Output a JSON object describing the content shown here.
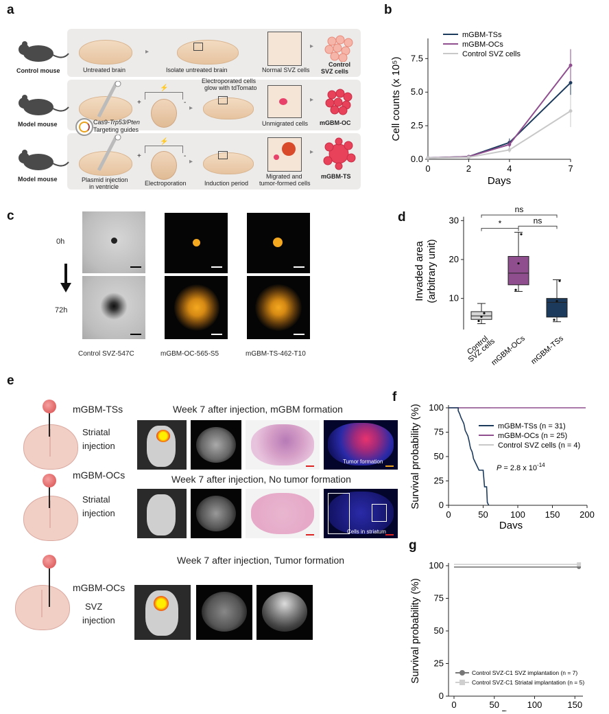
{
  "panels": {
    "a": "a",
    "b": "b",
    "c": "c",
    "d": "d",
    "e": "e",
    "f": "f",
    "g": "g"
  },
  "a": {
    "rows": [
      {
        "mouse": "Control mouse",
        "steps": [
          "Untreated brain",
          "Isolate untreated brain",
          "Normal SVZ cells"
        ],
        "result_line1": "Control",
        "result_line2": "SVZ cells"
      },
      {
        "mouse": "Model mouse",
        "steps": [
          "",
          "",
          "Unmigrated cells"
        ],
        "result_line1": "mGBM-OC",
        "result_line2": ""
      },
      {
        "mouse": "Model mouse",
        "steps": [
          "Plasmid injection",
          "Electroporation",
          "Induction period"
        ],
        "result_line1": "mGBM-TS",
        "result_line2": ""
      }
    ],
    "note_electroporated_1": "Electroporated cells",
    "note_electroporated_2": "glow with tdTomato",
    "guides_1_prefix": "Cas9-",
    "guides_1_italic": "Trp53/Pten",
    "guides_2": "Targeting guides",
    "plasmid_line2": "in ventricle",
    "migrated_1": "Migrated and",
    "migrated_2": "tumor-formed cells",
    "plus": "+",
    "minus": "-"
  },
  "c": {
    "time_0": "0h",
    "time_72": "72h",
    "captions": [
      "Control SVZ-547C",
      "mGBM-OC-565-S5",
      "mGBM-TS-462-T10"
    ]
  },
  "e": {
    "rows": [
      {
        "cell": "mGBM-TSs",
        "site_1": "Striatal",
        "site_2": "injection",
        "title": "Week 7 after injection, mGBM formation",
        "note": "Tumor formation"
      },
      {
        "cell": "mGBM-OCs",
        "site_1": "Striatal",
        "site_2": "injection",
        "title": "Week 7 after injection, No tumor formation",
        "note": "Cells in striatum"
      },
      {
        "cell": "mGBM-OCs",
        "site_1": "SVZ",
        "site_2": "injection",
        "title": "Week 7 after injection, Tumor formation",
        "note": ""
      }
    ]
  },
  "chart_data": [
    {
      "id": "b",
      "type": "line",
      "xlabel": "Days",
      "ylabel": "Cell counts (x 10⁵)",
      "x": [
        0,
        2,
        4,
        7
      ],
      "xticks": [
        0,
        2,
        4,
        7
      ],
      "yticks": [
        "0.0",
        "2.5",
        "5.0",
        "7.5"
      ],
      "xlim": [
        0,
        7
      ],
      "ylim": [
        0,
        9
      ],
      "series": [
        {
          "name": "mGBM-TSs",
          "color": "#1b3a5c",
          "values": [
            0.1,
            0.2,
            1.25,
            5.7
          ],
          "err": [
            0.03,
            0.05,
            0.3,
            1.0
          ]
        },
        {
          "name": "mGBM-OCs",
          "color": "#8f4f8f",
          "values": [
            0.1,
            0.2,
            1.1,
            7.0
          ],
          "err": [
            0.03,
            0.05,
            0.3,
            1.2
          ]
        },
        {
          "name": "Control SVZ cells",
          "color": "#c8c8c8",
          "values": [
            0.1,
            0.15,
            0.7,
            3.6
          ],
          "err": [
            0.03,
            0.05,
            0.2,
            1.2
          ]
        }
      ],
      "legend": "top-left"
    },
    {
      "id": "d",
      "type": "box",
      "ylabel_1": "Invaded area",
      "ylabel_2": "(arbitrary unit)",
      "yticks": [
        10,
        20,
        30
      ],
      "ylim": [
        2,
        32
      ],
      "categories": [
        "Control\nSVZ cells",
        "mGBM-OCs",
        "mGBM-TSs"
      ],
      "boxes": [
        {
          "color": "#d6d6d6",
          "min": 3.5,
          "q1": 4.6,
          "median": 5.5,
          "q3": 6.6,
          "max": 8.7,
          "points": [
            4.2,
            5.3,
            6.2
          ]
        },
        {
          "color": "#8f4f8f",
          "min": 11.8,
          "q1": 13.5,
          "median": 16.5,
          "q3": 20.8,
          "max": 27,
          "points": [
            12.2,
            19,
            26.5
          ]
        },
        {
          "color": "#1b3a5c",
          "min": 4,
          "q1": 5.2,
          "median": 9,
          "q3": 10,
          "max": 14.8,
          "points": [
            4.5,
            9.3,
            14.5
          ]
        }
      ],
      "annotations": [
        "ns",
        "*",
        "ns"
      ]
    },
    {
      "id": "f",
      "type": "line",
      "xlabel": "Days",
      "ylabel": "Survival probability (%)",
      "xticks": [
        0,
        50,
        100,
        150,
        200
      ],
      "yticks": [
        0,
        25,
        50,
        75,
        100
      ],
      "xlim": [
        0,
        200
      ],
      "ylim": [
        0,
        100
      ],
      "series": [
        {
          "name": "mGBM-TSs (n = 31)",
          "color": "#1b3a5c",
          "steps": [
            [
              0,
              100
            ],
            [
              14,
              100
            ],
            [
              14,
              97
            ],
            [
              16,
              94
            ],
            [
              18,
              90
            ],
            [
              20,
              87
            ],
            [
              22,
              84
            ],
            [
              23,
              81
            ],
            [
              24,
              77
            ],
            [
              26,
              74
            ],
            [
              28,
              71
            ],
            [
              29,
              68
            ],
            [
              30,
              65
            ],
            [
              31,
              61
            ],
            [
              32,
              58
            ],
            [
              34,
              55
            ],
            [
              35,
              52
            ],
            [
              36,
              48
            ],
            [
              38,
              45
            ],
            [
              40,
              42
            ],
            [
              42,
              39
            ],
            [
              44,
              36
            ],
            [
              50,
              36
            ],
            [
              52,
              19
            ],
            [
              55,
              19
            ],
            [
              56,
              3
            ],
            [
              58,
              0
            ]
          ]
        },
        {
          "name": "mGBM-OCs (n = 25)",
          "color": "#8f4f8f",
          "steps": [
            [
              0,
              100
            ],
            [
              198,
              100
            ]
          ]
        },
        {
          "name": "Control SVZ cells (n = 4)",
          "color": "#c8c8c8",
          "steps": [
            [
              0,
              100
            ],
            [
              60,
              100
            ]
          ]
        }
      ],
      "pvalue_prefix": "P",
      "pvalue": " = 2.8 x 10",
      "pvalue_exp": "-14"
    },
    {
      "id": "g",
      "type": "line",
      "xlabel": "Days",
      "ylabel": "Survival probability (%)",
      "xticks": [
        0,
        50,
        100,
        150
      ],
      "yticks": [
        0,
        25,
        50,
        75,
        100
      ],
      "xlim": [
        0,
        160
      ],
      "ylim": [
        0,
        100
      ],
      "series": [
        {
          "name": "Control SVZ-C1 SVZ implantation (n = 7)",
          "color": "#777777",
          "marker": "circle",
          "steps": [
            [
              0,
              99
            ],
            [
              155,
              99
            ]
          ]
        },
        {
          "name": "Control SVZ-C1 Striatal implantation (n = 5)",
          "color": "#cfcfcf",
          "marker": "square",
          "steps": [
            [
              0,
              101
            ],
            [
              155,
              101
            ]
          ]
        }
      ]
    }
  ]
}
